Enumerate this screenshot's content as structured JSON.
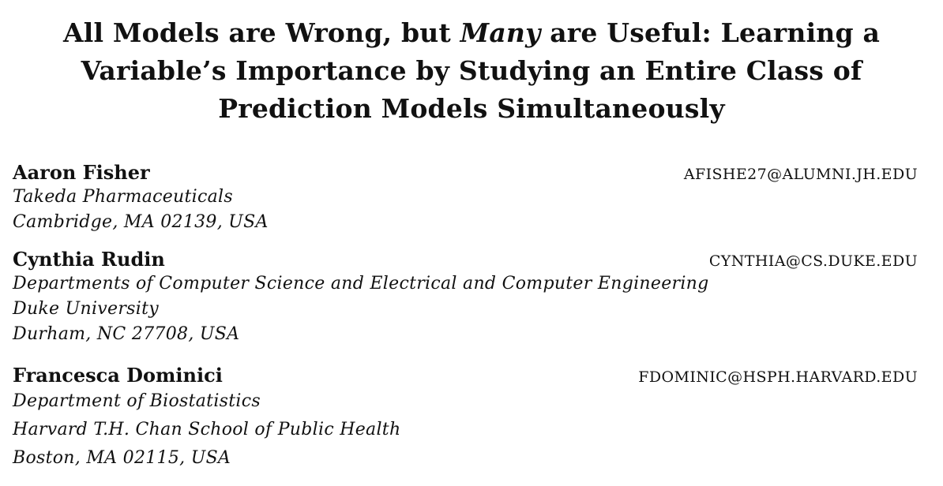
{
  "paper": {
    "title": {
      "line1": "All Models are Wrong, but",
      "line1_em": "Many",
      "line1_tail": "are Useful: Learning a",
      "line2": "Variable’s Importance by Studying an Entire Class of",
      "line3": "Prediction Models Simultaneously"
    },
    "authors": [
      {
        "name": "Aaron Fisher",
        "email": "AFISHE27@ALUMNI.JH.EDU",
        "affiliation": [
          "Takeda Pharmaceuticals",
          "Cambridge, MA 02139, USA"
        ]
      },
      {
        "name": "Cynthia Rudin",
        "email": "CYNTHIA@CS.DUKE.EDU",
        "affiliation": [
          "Departments of Computer Science and Electrical and Computer Engineering",
          "Duke University",
          "Durham, NC 27708, USA"
        ]
      },
      {
        "name": "Francesca Dominici",
        "email": "FDOMINIC@HSPH.HARVARD.EDU",
        "affiliation": [
          "Department of Biostatistics",
          "Harvard T.H. Chan School of Public Health",
          "Boston, MA 02115, USA"
        ]
      }
    ]
  }
}
